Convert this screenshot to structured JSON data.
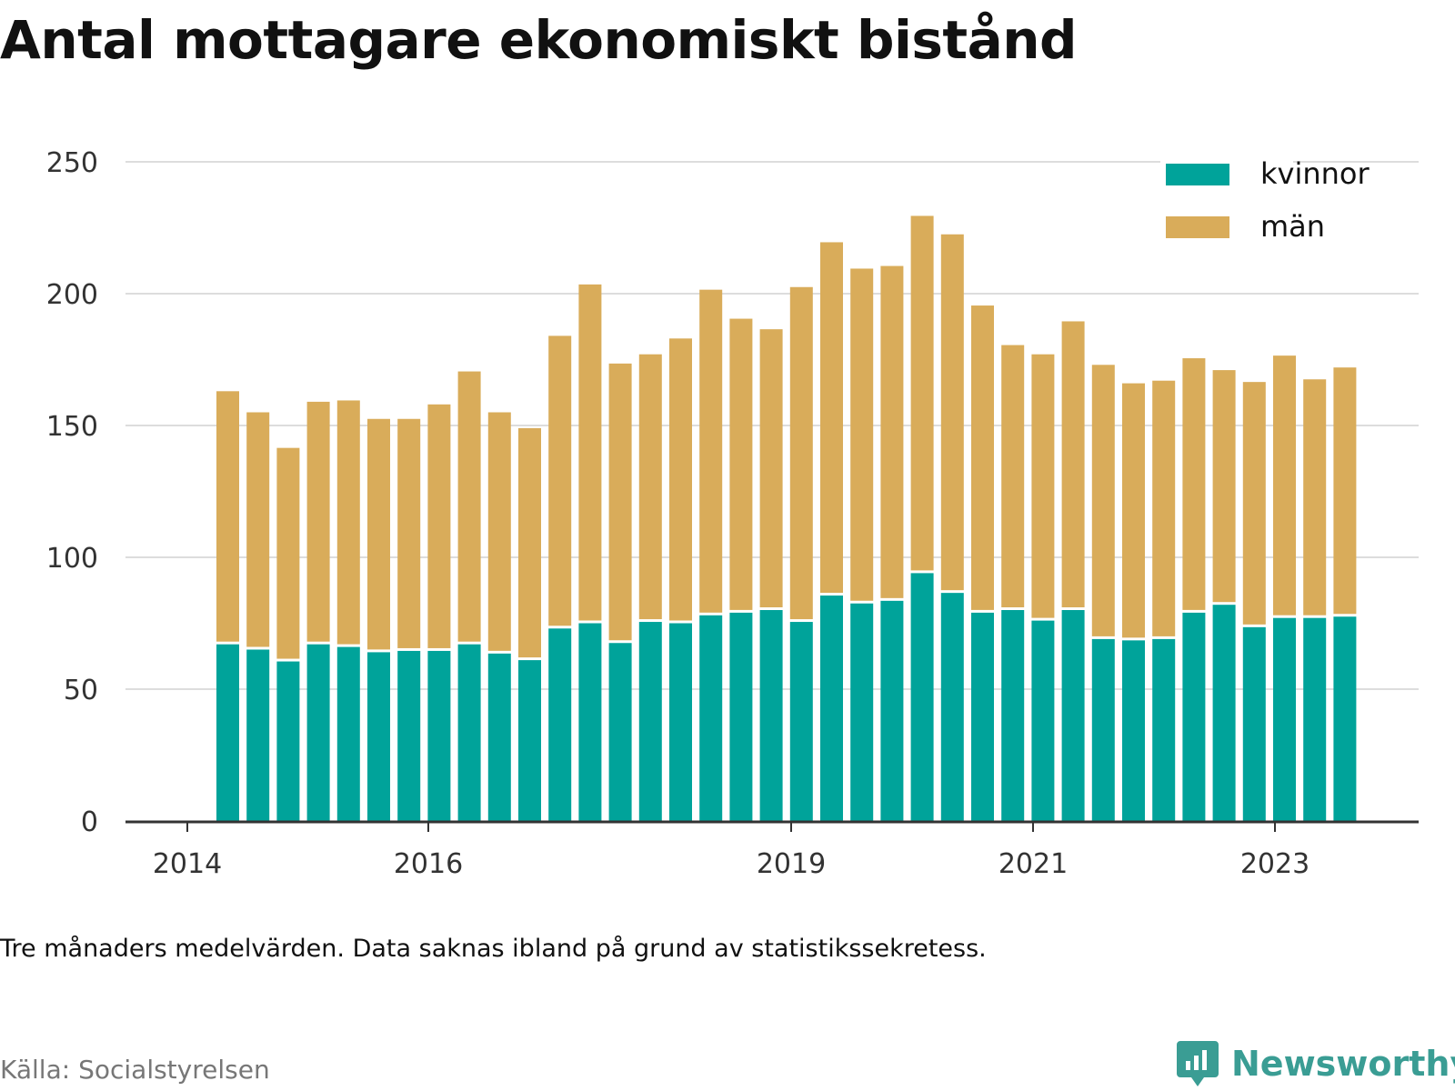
{
  "title": "Antal mottagare ekonomiskt bistånd",
  "note": "Tre månaders medelvärden. Data saknas ibland på grund av statistikssekretess.",
  "source": "Källa: Socialstyrelsen",
  "brand": {
    "name": "Newsworthy",
    "icon": "newsworthy-logo-icon",
    "color": "#3a9d94"
  },
  "colors": {
    "kvinnor": "#00a39a",
    "man": "#d9ac5a",
    "grid": "#dddddd",
    "axis": "#333333"
  },
  "chart_data": {
    "type": "bar",
    "stacked": true,
    "ylim": [
      0,
      250
    ],
    "yticks": [
      0,
      50,
      100,
      150,
      200,
      250
    ],
    "xticks": [
      "2014",
      "2016",
      "2019",
      "2021",
      "2023"
    ],
    "legend": {
      "placement": "top-right"
    },
    "grid": true,
    "series": [
      {
        "name": "kvinnor",
        "values": [
          67,
          65,
          60.5,
          67,
          66,
          64,
          64.5,
          64.5,
          67,
          63.5,
          61,
          73,
          75,
          67.5,
          75.5,
          75,
          78,
          79,
          80,
          75.5,
          85.5,
          82.5,
          83.5,
          94,
          86.5,
          79,
          80,
          76,
          80,
          69,
          68.5,
          69,
          79,
          82,
          73.5,
          77,
          77,
          77.5
        ]
      },
      {
        "name": "män",
        "values": [
          96,
          90,
          81,
          92,
          93.5,
          88.5,
          88,
          93.5,
          103.5,
          91.5,
          88,
          111,
          128.5,
          106,
          101.5,
          108,
          123.5,
          111.5,
          106.5,
          127,
          134,
          127,
          127,
          135.5,
          136,
          116.5,
          100.5,
          101,
          109.5,
          104,
          97.5,
          98,
          96.5,
          89,
          93,
          99.5,
          90.5,
          94.5
        ]
      }
    ]
  }
}
